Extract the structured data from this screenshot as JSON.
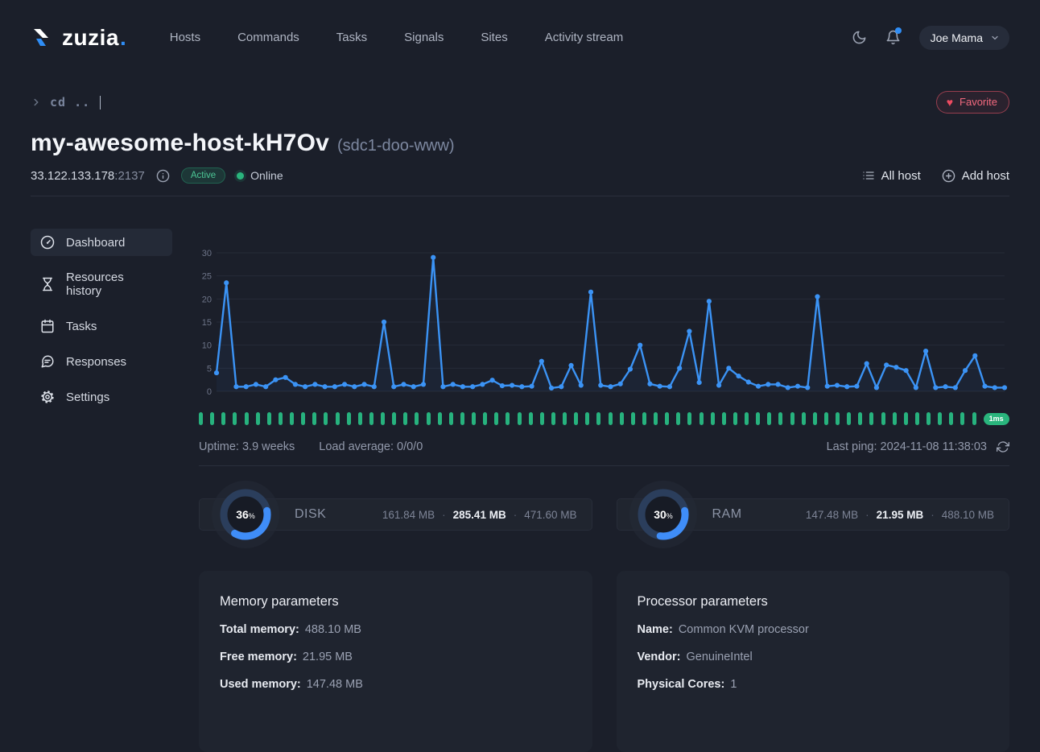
{
  "header": {
    "logo_text": "zuzia",
    "logo_dot": ".",
    "nav": [
      {
        "label": "Hosts"
      },
      {
        "label": "Commands"
      },
      {
        "label": "Tasks"
      },
      {
        "label": "Signals"
      },
      {
        "label": "Sites"
      },
      {
        "label": "Activity stream"
      }
    ],
    "user": {
      "name": "Joe Mama"
    }
  },
  "breadcrumb": {
    "command": "cd .."
  },
  "host": {
    "title": "my-awesome-host-kH7Ov",
    "subtitle": "(sdc1-doo-www)",
    "ip": "33.122.133.178",
    "port": ":2137",
    "status_badge": "Active",
    "online_label": "Online",
    "favorite_label": "Favorite",
    "heart_glyph": "♥",
    "all_host_label": "All host",
    "add_host_label": "Add host"
  },
  "sidebar": {
    "items": [
      {
        "label": "Dashboard",
        "active": true
      },
      {
        "label": "Resources history",
        "active": false
      },
      {
        "label": "Tasks",
        "active": false
      },
      {
        "label": "Responses",
        "active": false
      },
      {
        "label": "Settings",
        "active": false
      }
    ]
  },
  "chart_data": {
    "type": "line",
    "title": "",
    "xlabel": "",
    "ylabel": "",
    "ylim": [
      0,
      30
    ],
    "yticks": [
      0,
      5,
      10,
      15,
      20,
      25,
      30
    ],
    "grid": true,
    "legend": false,
    "line_color": "#3b93f5",
    "values": [
      4,
      23.5,
      1,
      1,
      1.5,
      1,
      2.5,
      3,
      1.5,
      1,
      1.5,
      1,
      1,
      1.5,
      1,
      1.5,
      1,
      15,
      1,
      1.5,
      1,
      1.5,
      29,
      1,
      1.5,
      1,
      1,
      1.5,
      2.4,
      1.2,
      1.3,
      1,
      1.1,
      6.5,
      0.7,
      1,
      5.6,
      1.3,
      21.5,
      1.3,
      1,
      1.6,
      4.8,
      10,
      1.6,
      1.1,
      1,
      5,
      13,
      1.9,
      19.5,
      1.3,
      5,
      3.3,
      2,
      1.1,
      1.5,
      1.5,
      0.8,
      1.1,
      0.8,
      20.5,
      1.1,
      1.3,
      1,
      1.1,
      6,
      0.8,
      5.7,
      5.2,
      4.5,
      0.8,
      8.7,
      0.8,
      1,
      0.8,
      4.5,
      7.7,
      1.1,
      0.8,
      0.8
    ]
  },
  "ping_strip": {
    "bar_count": 69,
    "bar_color": "#27b27e",
    "badge": "1ms"
  },
  "status_row": {
    "uptime": "Uptime: 3.9 weeks",
    "load": "Load average: 0/0/0",
    "last_ping": "Last ping: 2024-11-08 11:38:03"
  },
  "ui": {
    "dot_separator": "·"
  },
  "gauges": [
    {
      "name": "DISK",
      "percent": 36,
      "suffix": "%",
      "values": [
        "161.84 MB",
        "285.41 MB",
        "471.60 MB"
      ]
    },
    {
      "name": "RAM",
      "percent": 30,
      "suffix": "%",
      "values": [
        "147.48 MB",
        "21.95 MB",
        "488.10 MB"
      ]
    }
  ],
  "cards": [
    {
      "title": "Memory parameters",
      "rows": [
        {
          "label": "Total memory:",
          "value": "488.10 MB"
        },
        {
          "label": "Free memory:",
          "value": "21.95 MB"
        },
        {
          "label": "Used memory:",
          "value": "147.48 MB"
        }
      ]
    },
    {
      "title": "Processor parameters",
      "rows": [
        {
          "label": "Name:",
          "value": "Common KVM processor"
        },
        {
          "label": "Vendor:",
          "value": "GenuineIntel"
        },
        {
          "label": "Physical Cores:",
          "value": "1"
        }
      ]
    }
  ],
  "colors": {
    "background": "#1b1f2a",
    "accent_blue": "#3b93f5",
    "accent_green": "#2ab57d",
    "accent_red": "#f0556d"
  }
}
